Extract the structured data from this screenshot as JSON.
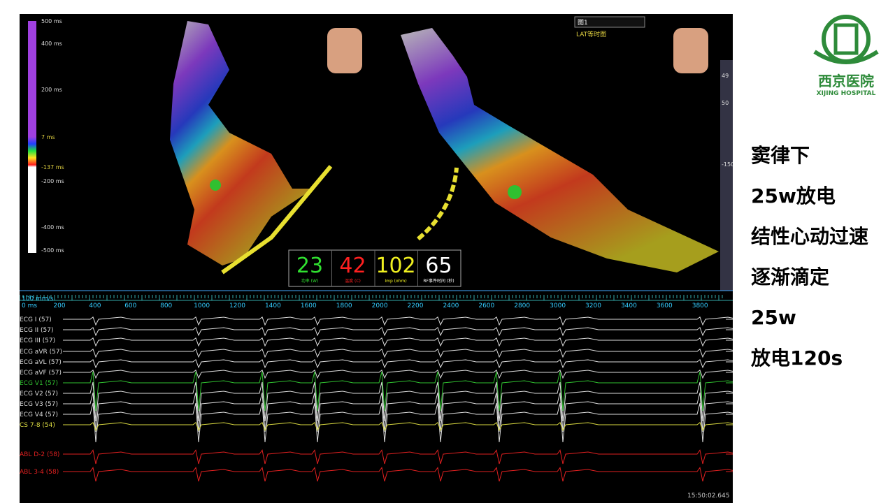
{
  "slide": {
    "notes": [
      "窦律下",
      "25w放电",
      "结性心动过速",
      "逐渐滴定",
      "25w",
      "放电120s"
    ],
    "logo": {
      "name": "西京医院",
      "english": "XIJING HOSPITAL"
    }
  },
  "map": {
    "scale_labels": [
      "500 ms",
      "400 ms",
      "200 ms",
      "7 ms",
      "-137 ms",
      "-200 ms",
      "-400 ms",
      "-500 ms"
    ],
    "view_select": "图1",
    "map_type": "LAT等时图",
    "toolbar": [
      "49",
      "50",
      "-150"
    ]
  },
  "rf_panel": [
    {
      "value": "23",
      "label": "功率 (W)"
    },
    {
      "value": "42",
      "label": "温度 (C)"
    },
    {
      "value": "102",
      "label": "Imp (ohm)"
    },
    {
      "value": "65",
      "label": "RF事件时间 (秒)"
    }
  ],
  "timeline": {
    "speed": "100 mm/s",
    "origin": "0 ms",
    "ticks": [
      "200",
      "400",
      "600",
      "800",
      "1000",
      "1200",
      "1400",
      "1600",
      "1800",
      "2000",
      "2200",
      "2400",
      "2600",
      "2800",
      "3000",
      "3200",
      "3400",
      "3600",
      "3800"
    ]
  },
  "channels": [
    "ECG I (57)",
    "ECG II (57)",
    "ECG III (57)",
    "ECG aVR (57)",
    "ECG aVL (57)",
    "ECG aVF (57)",
    "ECG V1 (57)",
    "ECG V2 (57)",
    "ECG V3 (57)",
    "ECG V4 (57)",
    "CS  7-8 (54)",
    "ABL  D-2 (58)",
    "ABL  3-4 (58)"
  ],
  "timestamp": "15:50:02.645"
}
